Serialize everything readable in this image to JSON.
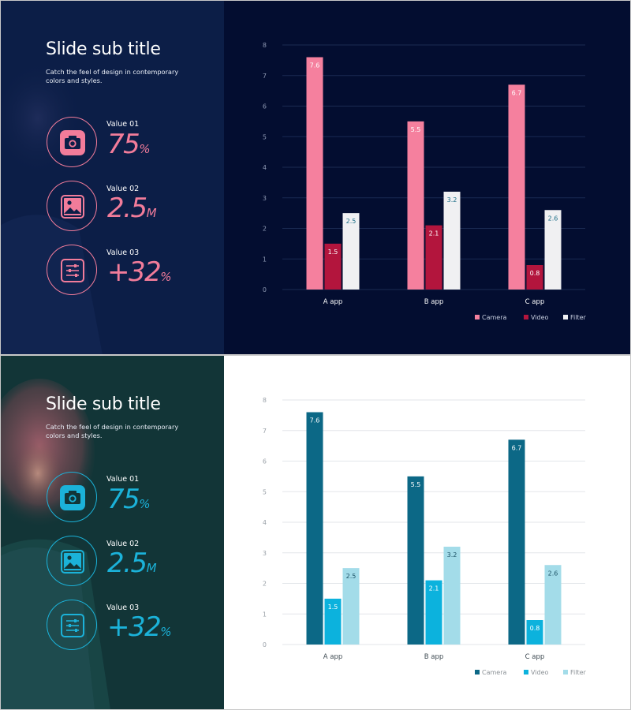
{
  "slides": [
    {
      "title": "Slide sub title",
      "description": "Catch the feel of design in contemporary colors and styles.",
      "stats": [
        {
          "label": "Value 01",
          "value": "75",
          "unit": "%",
          "icon": "camera-icon"
        },
        {
          "label": "Value 02",
          "value": "2.5",
          "unit": "M",
          "icon": "image-icon"
        },
        {
          "label": "Value 03",
          "value": "+32",
          "unit": "%",
          "icon": "sliders-icon"
        }
      ],
      "colors": {
        "left_bg": "#0c1e47",
        "right_bg": "#030d30",
        "accent": "#f27c9a",
        "grid": "#1b2a52",
        "tick": "#8e99b3",
        "legend_text": "#c8cfe0"
      }
    },
    {
      "title": "Slide sub title",
      "description": "Catch the feel of design in contemporary colors and styles.",
      "stats": [
        {
          "label": "Value 01",
          "value": "75",
          "unit": "%",
          "icon": "camera-icon"
        },
        {
          "label": "Value 02",
          "value": "2.5",
          "unit": "M",
          "icon": "image-icon"
        },
        {
          "label": "Value 03",
          "value": "+32",
          "unit": "%",
          "icon": "sliders-icon"
        }
      ],
      "colors": {
        "left_bg": "#123537",
        "right_bg": "#ffffff",
        "accent": "#1bb2d9",
        "grid": "#e3e6ea",
        "tick": "#9aa1a8",
        "legend_text": "#8b9196"
      }
    }
  ],
  "chart_data": [
    {
      "type": "bar",
      "categories": [
        "A app",
        "B app",
        "C app"
      ],
      "series": [
        {
          "name": "Camera",
          "values": [
            7.6,
            5.5,
            6.7
          ],
          "color": "#f5809e",
          "label_color": "#ffffff"
        },
        {
          "name": "Video",
          "values": [
            1.5,
            2.1,
            0.8
          ],
          "color": "#b3153d",
          "label_color": "#ffffff"
        },
        {
          "name": "Filter",
          "values": [
            2.5,
            3.2,
            2.6
          ],
          "color": "#f0f0f2",
          "label_color": "#1a6d86"
        }
      ],
      "ylim": [
        0,
        8
      ],
      "yticks": [
        0,
        1,
        2,
        3,
        4,
        5,
        6,
        7,
        8
      ],
      "grid": true,
      "legend_position": "bottom-right",
      "category_label_color": "#ffffff"
    },
    {
      "type": "bar",
      "categories": [
        "A app",
        "B app",
        "C app"
      ],
      "series": [
        {
          "name": "Camera",
          "values": [
            7.6,
            5.5,
            6.7
          ],
          "color": "#0c6886",
          "label_color": "#ffffff"
        },
        {
          "name": "Video",
          "values": [
            1.5,
            2.1,
            0.8
          ],
          "color": "#0cb2dd",
          "label_color": "#ffffff"
        },
        {
          "name": "Filter",
          "values": [
            2.5,
            3.2,
            2.6
          ],
          "color": "#a3dce9",
          "label_color": "#1d5266"
        }
      ],
      "ylim": [
        0,
        8
      ],
      "yticks": [
        0,
        1,
        2,
        3,
        4,
        5,
        6,
        7,
        8
      ],
      "grid": true,
      "legend_position": "bottom-right",
      "category_label_color": "#3e4a52"
    }
  ]
}
